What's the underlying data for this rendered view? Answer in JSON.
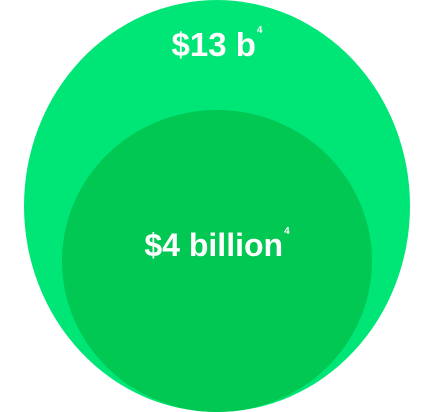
{
  "colors": {
    "outer": "#00e676",
    "inner": "#00c853",
    "text": "#ffffff"
  },
  "outer": {
    "label": "$13 b",
    "footnote": "4"
  },
  "inner": {
    "label": "$4 billion",
    "footnote": "4"
  }
}
